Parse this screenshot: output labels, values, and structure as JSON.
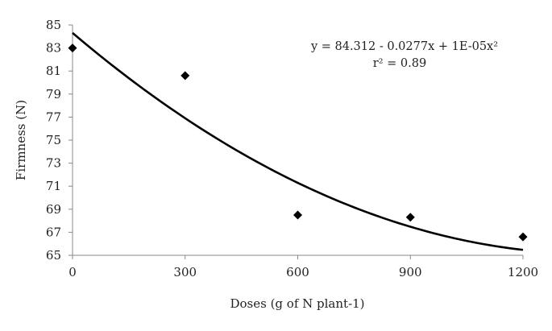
{
  "chart_data": {
    "type": "scatter",
    "xlabel": "Doses (g of N plant-1)",
    "ylabel": "Firmness (N)",
    "xlim": [
      0,
      1200
    ],
    "ylim": [
      65,
      85
    ],
    "x_ticks": [
      "0",
      "300",
      "600",
      "900",
      "1200"
    ],
    "y_ticks": [
      "65",
      "67",
      "69",
      "71",
      "73",
      "75",
      "77",
      "79",
      "81",
      "83",
      "85"
    ],
    "grid": false,
    "series": [
      {
        "x": [
          0,
          300,
          600,
          900,
          1200
        ],
        "y": [
          83.0,
          80.6,
          68.5,
          68.3,
          66.6
        ]
      }
    ],
    "trendline": {
      "type": "polynomial",
      "coefficients": [
        84.312,
        -0.0277,
        1e-05
      ],
      "equation": "y = 84.312 - 0.0277x + 1E-05x²",
      "r2": "r² = 0.89"
    },
    "colors": {
      "marker": "#000000",
      "trendline": "#000000",
      "axis": "#888888"
    }
  }
}
